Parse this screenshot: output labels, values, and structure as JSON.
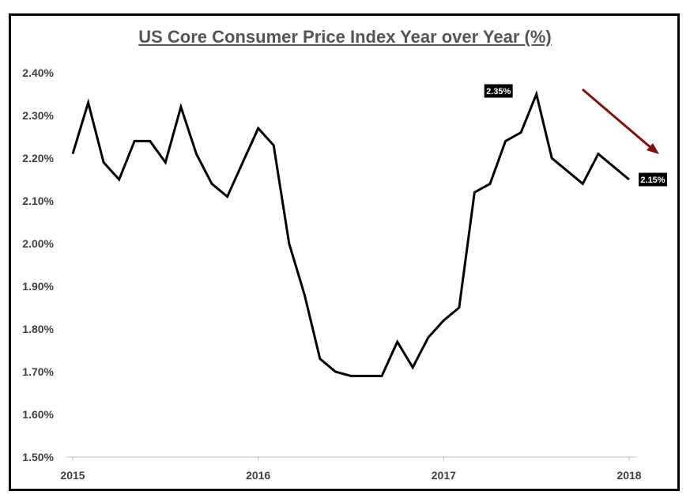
{
  "chart_data": {
    "type": "line",
    "title": "US Core Consumer Price Index Year over Year (%)",
    "xlabel": "",
    "ylabel": "",
    "x_ticks": [
      "2015",
      "2016",
      "2017",
      "2018"
    ],
    "y_ticks": [
      "1.50%",
      "1.60%",
      "1.70%",
      "1.80%",
      "1.90%",
      "2.00%",
      "2.10%",
      "2.20%",
      "2.30%",
      "2.40%"
    ],
    "ylim": [
      1.5,
      2.4
    ],
    "grid": false,
    "legend": "none",
    "series": [
      {
        "x": [
          "2015-01",
          "2015-02",
          "2015-03",
          "2015-04",
          "2015-05",
          "2015-06",
          "2015-07",
          "2015-08",
          "2015-09",
          "2015-10",
          "2015-11",
          "2015-12",
          "2016-01",
          "2016-02",
          "2016-03",
          "2016-04",
          "2016-05",
          "2016-06",
          "2016-07",
          "2016-08",
          "2016-09",
          "2016-10",
          "2016-11",
          "2016-12",
          "2017-01",
          "2017-02",
          "2017-03",
          "2017-04",
          "2017-05",
          "2017-06",
          "2017-07",
          "2017-08",
          "2017-09",
          "2017-10",
          "2017-11",
          "2017-12",
          "2018-01"
        ],
        "values": [
          2.21,
          2.33,
          2.19,
          2.15,
          2.24,
          2.24,
          2.19,
          2.32,
          2.21,
          2.14,
          2.11,
          2.19,
          2.27,
          2.23,
          2.0,
          1.88,
          1.73,
          1.7,
          1.69,
          1.69,
          1.69,
          1.77,
          1.71,
          1.78,
          1.82,
          1.85,
          2.12,
          2.14,
          2.24,
          2.26,
          2.35,
          2.2,
          2.17,
          2.14,
          2.21,
          2.18,
          2.15
        ]
      }
    ],
    "annotations": [
      {
        "text": "2.35%",
        "index": 30
      },
      {
        "text": "2.15%",
        "index": 36
      }
    ],
    "colors": {
      "line": "#000000",
      "arrow": "#7b1010",
      "label_bg": "#000000",
      "label_text": "#ffffff",
      "axis": "#bfbfbf"
    }
  }
}
